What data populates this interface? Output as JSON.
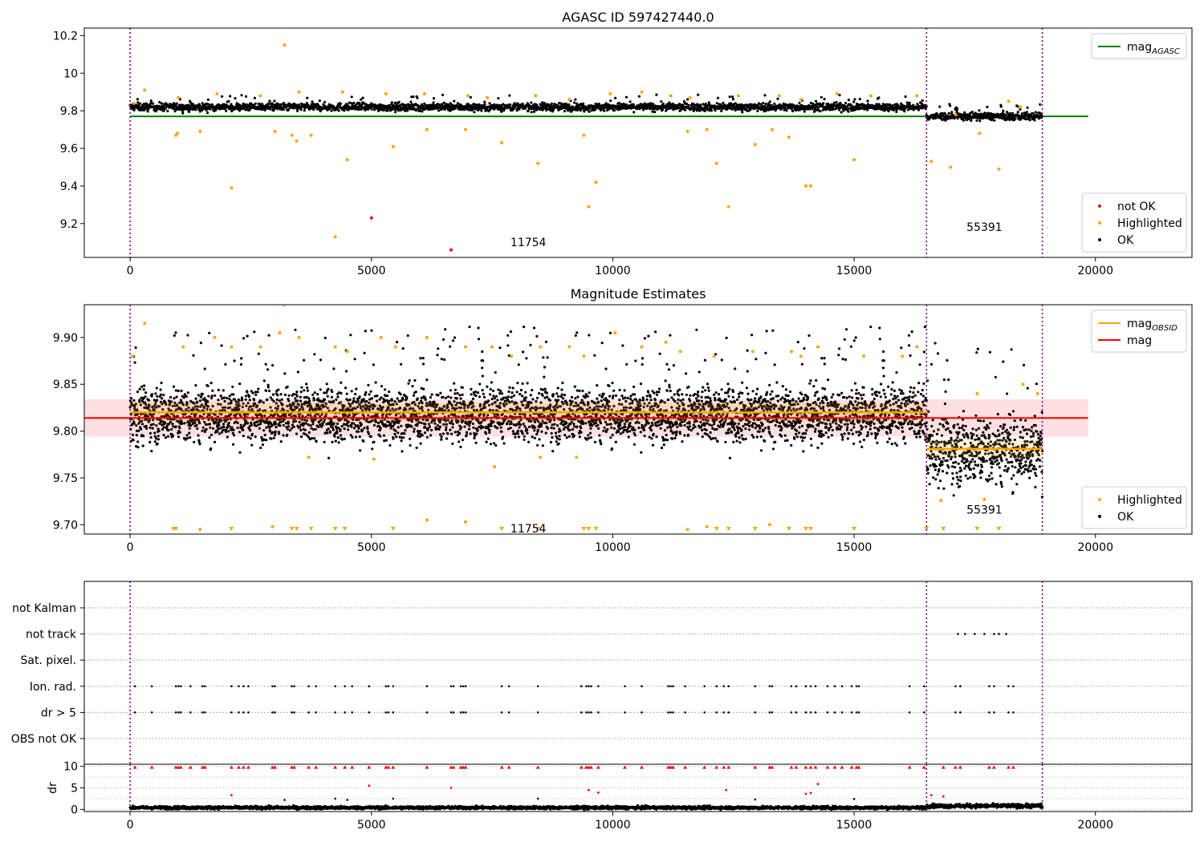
{
  "chart_data": [
    {
      "type": "scatter",
      "title": "AGASC ID 597427440.0",
      "xlim": [
        -950,
        22000
      ],
      "ylim": [
        9.02,
        10.24
      ],
      "xticks": [
        0,
        5000,
        10000,
        15000,
        20000
      ],
      "yticks": [
        9.2,
        9.4,
        9.6,
        9.8,
        10.0,
        10.2
      ],
      "legend_upper": {
        "placement": "upper right",
        "entries": [
          {
            "label": "mag",
            "subscript": "AGASC",
            "color": "#008000"
          }
        ]
      },
      "legend_lower": {
        "placement": "lower right",
        "entries": [
          {
            "label": "not OK",
            "color": "#ff0000"
          },
          {
            "label": "Highlighted",
            "color": "#ffa500"
          },
          {
            "label": "OK",
            "color": "#000000"
          }
        ]
      },
      "obsid_boundaries": [
        0,
        16500,
        18900
      ],
      "obsid_labels": [
        {
          "text": "11754",
          "x": 8250,
          "y": 9.08
        },
        {
          "text": "55391",
          "x": 17700,
          "y": 9.16
        }
      ],
      "mag_agasc": {
        "value": 9.77,
        "x_range": [
          0,
          19850
        ]
      },
      "series": [
        {
          "name": "OK",
          "color": "#000000",
          "segments": [
            {
              "x_range": [
                0,
                16500
              ],
              "mean": 9.82,
              "band": [
                9.79,
                9.85
              ]
            },
            {
              "x_range": [
                16500,
                18900
              ],
              "mean": 9.77,
              "band": [
                9.74,
                9.8
              ]
            }
          ]
        },
        {
          "name": "Highlighted",
          "color": "#ffa500",
          "points": [
            [
              80,
              9.84
            ],
            [
              300,
              9.91
            ],
            [
              950,
              9.67
            ],
            [
              980,
              9.68
            ],
            [
              1450,
              9.69
            ],
            [
              2100,
              9.39
            ],
            [
              3000,
              9.69
            ],
            [
              3200,
              10.15
            ],
            [
              3350,
              9.67
            ],
            [
              3450,
              9.64
            ],
            [
              3750,
              9.67
            ],
            [
              4250,
              9.13
            ],
            [
              4500,
              9.54
            ],
            [
              5450,
              9.61
            ],
            [
              6150,
              9.7
            ],
            [
              6950,
              9.7
            ],
            [
              7700,
              9.63
            ],
            [
              8450,
              9.52
            ],
            [
              9400,
              9.67
            ],
            [
              9500,
              9.29
            ],
            [
              9650,
              9.42
            ],
            [
              11550,
              9.69
            ],
            [
              11950,
              9.7
            ],
            [
              12150,
              9.52
            ],
            [
              12400,
              9.29
            ],
            [
              12950,
              9.62
            ],
            [
              13300,
              9.7
            ],
            [
              13650,
              9.66
            ],
            [
              14000,
              9.4
            ],
            [
              14100,
              9.4
            ],
            [
              15000,
              9.54
            ],
            [
              16600,
              9.53
            ],
            [
              17000,
              9.5
            ],
            [
              17600,
              9.68
            ],
            [
              18000,
              9.49
            ],
            [
              17100,
              9.78
            ],
            [
              18200,
              9.85
            ],
            [
              18450,
              9.82
            ],
            [
              1800,
              9.89
            ],
            [
              4400,
              9.9
            ],
            [
              6100,
              9.89
            ],
            [
              8400,
              9.88
            ],
            [
              10600,
              9.9
            ],
            [
              12600,
              9.88
            ],
            [
              14650,
              9.89
            ],
            [
              16300,
              9.88
            ],
            [
              2700,
              9.88
            ],
            [
              5300,
              9.89
            ],
            [
              7400,
              9.87
            ],
            [
              9950,
              9.89
            ],
            [
              11200,
              9.88
            ],
            [
              13450,
              9.88
            ],
            [
              15350,
              9.88
            ],
            [
              1000,
              9.87
            ],
            [
              3500,
              9.9
            ],
            [
              7000,
              9.88
            ],
            [
              9100,
              9.86
            ],
            [
              11600,
              9.87
            ],
            [
              13900,
              9.86
            ]
          ]
        },
        {
          "name": "not OK",
          "color": "#ff0000",
          "points": [
            [
              5000,
              9.23
            ],
            [
              6650,
              9.06
            ]
          ]
        }
      ]
    },
    {
      "type": "scatter",
      "title": "Magnitude Estimates",
      "xlim": [
        -950,
        22000
      ],
      "ylim": [
        9.69,
        9.935
      ],
      "xticks": [
        0,
        5000,
        10000,
        15000,
        20000
      ],
      "yticks": [
        9.7,
        9.75,
        9.8,
        9.85,
        9.9
      ],
      "ytick_labels": [
        "9.70",
        "9.75",
        "9.80",
        "9.85",
        "9.90"
      ],
      "legend_upper": {
        "placement": "upper right",
        "entries": [
          {
            "label": "mag",
            "subscript": "OBSID",
            "color": "#ffa500"
          },
          {
            "label": "mag",
            "color": "#ff0000"
          }
        ]
      },
      "legend_lower": {
        "placement": "lower right",
        "entries": [
          {
            "label": "Highlighted",
            "color": "#ffa500"
          },
          {
            "label": "OK",
            "color": "#000000"
          }
        ]
      },
      "obsid_boundaries": [
        0,
        16500,
        18900
      ],
      "obsid_labels": [
        {
          "text": "11754",
          "x": 8250,
          "y": 9.69
        },
        {
          "text": "55391",
          "x": 17700,
          "y": 9.71
        }
      ],
      "mag": {
        "value": 9.814,
        "band": [
          9.794,
          9.834
        ],
        "x_range": [
          -950,
          19850
        ]
      },
      "mag_obsid": [
        {
          "value": 9.82,
          "x_range": [
            0,
            16500
          ]
        },
        {
          "value": 9.781,
          "x_range": [
            16500,
            18900
          ]
        }
      ],
      "series": [
        {
          "name": "OK",
          "color": "#000000",
          "segments": [
            {
              "x_range": [
                0,
                16500
              ],
              "mean": 9.818,
              "band": [
                9.78,
                9.865
              ]
            },
            {
              "x_range": [
                16500,
                18900
              ],
              "mean": 9.78,
              "band": [
                9.73,
                9.835
              ]
            }
          ]
        },
        {
          "name": "Highlighted",
          "color": "#ffa500",
          "points": [
            [
              50,
              9.88
            ],
            [
              300,
              9.915
            ],
            [
              1100,
              9.89
            ],
            [
              1750,
              9.9
            ],
            [
              2100,
              9.89
            ],
            [
              2700,
              9.89
            ],
            [
              3100,
              9.905
            ],
            [
              3200,
              9.935
            ],
            [
              3500,
              9.9
            ],
            [
              4250,
              9.89
            ],
            [
              4500,
              9.885
            ],
            [
              5200,
              9.9
            ],
            [
              5500,
              9.89
            ],
            [
              6150,
              9.9
            ],
            [
              6950,
              9.89
            ],
            [
              7500,
              9.89
            ],
            [
              7900,
              9.88
            ],
            [
              8500,
              9.89
            ],
            [
              9100,
              9.89
            ],
            [
              9400,
              9.88
            ],
            [
              10050,
              9.905
            ],
            [
              10600,
              9.89
            ],
            [
              11100,
              9.895
            ],
            [
              11400,
              9.885
            ],
            [
              12100,
              9.88
            ],
            [
              12900,
              9.885
            ],
            [
              13700,
              9.885
            ],
            [
              13900,
              9.88
            ],
            [
              14250,
              9.89
            ],
            [
              15200,
              9.88
            ],
            [
              16000,
              9.88
            ],
            [
              16300,
              9.89
            ],
            [
              18500,
              9.85
            ],
            [
              18800,
              9.84
            ],
            [
              17550,
              9.84
            ],
            [
              3700,
              9.772
            ],
            [
              5050,
              9.77
            ],
            [
              7550,
              9.762
            ],
            [
              8500,
              9.772
            ],
            [
              9250,
              9.772
            ],
            [
              6150,
              9.705
            ],
            [
              6950,
              9.703
            ],
            [
              2950,
              9.698
            ],
            [
              11550,
              9.695
            ],
            [
              11950,
              9.698
            ],
            [
              13250,
              9.7
            ],
            [
              1450,
              9.695
            ],
            [
              16800,
              9.726
            ],
            [
              17700,
              9.727
            ]
          ]
        },
        {
          "name": "Highlighted (off-scale)",
          "color": "#ffa500",
          "marker": "triangle-down",
          "x_values": [
            900,
            950,
            2100,
            3350,
            3450,
            3750,
            4250,
            4450,
            5450,
            7700,
            8450,
            9400,
            9500,
            9650,
            12150,
            12400,
            12950,
            13650,
            14000,
            14100,
            15000,
            16500,
            16850,
            17550,
            18000
          ]
        }
      ]
    },
    {
      "type": "scatter",
      "title": "",
      "xlim": [
        -950,
        22000
      ],
      "categories": [
        "not Kalman",
        "not track",
        "Sat. pixel.",
        "Ion. rad.",
        "dr > 5",
        "OBS not OK"
      ],
      "flag_points": {
        "not track": [
          17150,
          17300,
          17500,
          17700,
          17900,
          18000,
          18150
        ],
        "Ion. rad.": [
          100,
          450,
          950,
          1000,
          1050,
          1250,
          1500,
          1550,
          2100,
          2250,
          2350,
          2450,
          2950,
          3000,
          3350,
          3400,
          3700,
          3850,
          4250,
          4450,
          4600,
          4950,
          5300,
          5350,
          5450,
          6150,
          6650,
          6700,
          6850,
          6900,
          6950,
          7700,
          7850,
          8450,
          9350,
          9450,
          9500,
          9550,
          9700,
          10250,
          10600,
          11150,
          11200,
          11250,
          11500,
          11900,
          12150,
          12300,
          12400,
          12950,
          13250,
          13300,
          13700,
          13800,
          14000,
          14100,
          14200,
          14450,
          14600,
          14750,
          14950,
          15050,
          15100,
          16150,
          16450,
          17100,
          17200,
          17800,
          17900,
          18200,
          18300
        ],
        "dr > 5": [
          100,
          450,
          950,
          1000,
          1050,
          1250,
          1500,
          1550,
          2100,
          2250,
          2350,
          2450,
          2950,
          3000,
          3350,
          3400,
          3700,
          3850,
          4250,
          4450,
          4600,
          4950,
          5300,
          5350,
          5450,
          6150,
          6650,
          6700,
          6850,
          6900,
          6950,
          7700,
          7850,
          8450,
          9350,
          9450,
          9500,
          9550,
          9700,
          10250,
          10600,
          11150,
          11200,
          11250,
          11500,
          11900,
          12150,
          12300,
          12400,
          12950,
          13250,
          13300,
          13700,
          13800,
          14000,
          14100,
          14200,
          14450,
          14600,
          14750,
          14950,
          15050,
          15100,
          16150,
          16450,
          17100,
          17200,
          17800,
          17900,
          18200,
          18300
        ]
      },
      "obsid_boundaries": [
        0,
        16500,
        18900
      ]
    },
    {
      "type": "scatter",
      "ylabel": "dr",
      "xlim": [
        -950,
        22000
      ],
      "ylim": [
        -0.5,
        10.5
      ],
      "xticks": [
        0,
        5000,
        10000,
        15000,
        20000
      ],
      "yticks": [
        0,
        5,
        10
      ],
      "obsid_boundaries": [
        0,
        16500,
        18900
      ],
      "series": [
        {
          "name": "OK",
          "color": "#000000",
          "segments": [
            {
              "x_range": [
                0,
                16500
              ],
              "mean": 0.4,
              "band": [
                0.0,
                1.0
              ]
            },
            {
              "x_range": [
                16500,
                18900
              ],
              "mean": 0.8,
              "band": [
                0.2,
                1.5
              ]
            }
          ]
        },
        {
          "name": "dr > 5 (clipped at 10)",
          "color": "#ff0000",
          "marker": "triangle-up",
          "x_values": [
            100,
            450,
            950,
            1000,
            1050,
            1250,
            1500,
            1550,
            2100,
            2250,
            2350,
            2450,
            2950,
            3000,
            3350,
            3400,
            3700,
            3850,
            4250,
            4450,
            4600,
            4950,
            5300,
            5350,
            5450,
            6150,
            6650,
            6700,
            6850,
            6900,
            6950,
            7700,
            7850,
            8450,
            9350,
            9450,
            9500,
            9550,
            9700,
            10250,
            10600,
            11150,
            11200,
            11250,
            11500,
            11900,
            12150,
            12300,
            12400,
            12950,
            13250,
            13300,
            13700,
            13800,
            14000,
            14100,
            14200,
            14450,
            14600,
            14750,
            14950,
            15050,
            15100,
            16150,
            16450,
            16850,
            17100,
            17200,
            17800,
            17900,
            18200,
            18300
          ]
        },
        {
          "name": "not OK",
          "color": "#ff0000",
          "points": [
            [
              2100,
              3.3
            ],
            [
              4950,
              5.5
            ],
            [
              6650,
              5.0
            ],
            [
              9500,
              4.5
            ],
            [
              9700,
              3.9
            ],
            [
              12350,
              4.5
            ],
            [
              14000,
              3.6
            ],
            [
              14100,
              3.8
            ],
            [
              14250,
              5.9
            ],
            [
              16600,
              3.3
            ],
            [
              16850,
              3.0
            ]
          ]
        },
        {
          "name": "OK (outliers)",
          "color": "#000000",
          "points": [
            [
              3200,
              2.2
            ],
            [
              4250,
              2.5
            ],
            [
              4500,
              2.2
            ],
            [
              5450,
              2.5
            ],
            [
              8450,
              2.5
            ],
            [
              12950,
              2.3
            ],
            [
              15000,
              2.4
            ]
          ]
        }
      ]
    }
  ]
}
